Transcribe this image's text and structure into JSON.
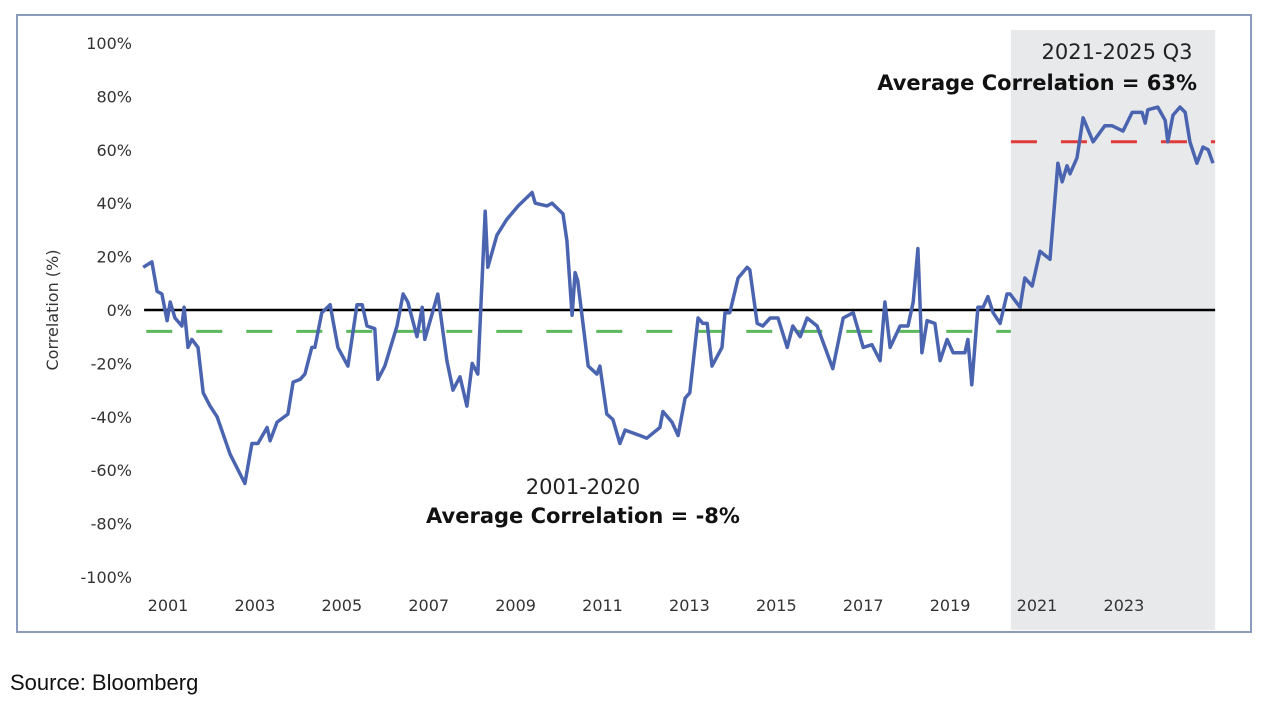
{
  "chart_data": {
    "type": "line",
    "ylabel": "Correlation (%)",
    "xlabel": "",
    "ylim": [
      -100,
      100
    ],
    "xlim": [
      2000.45,
      2025.1
    ],
    "y_ticks": [
      "100%",
      "80%",
      "60%",
      "40%",
      "20%",
      "0%",
      "-20%",
      "-40%",
      "-60%",
      "-80%",
      "-100%"
    ],
    "y_tick_values": [
      100,
      80,
      60,
      40,
      20,
      0,
      -20,
      -40,
      -60,
      -80,
      -100
    ],
    "x_ticks": [
      "2001",
      "2003",
      "2005",
      "2007",
      "2009",
      "2011",
      "2013",
      "2015",
      "2017",
      "2019",
      "2021",
      "2023"
    ],
    "x_tick_values": [
      2001,
      2003,
      2005,
      2007,
      2009,
      2011,
      2013,
      2015,
      2017,
      2019,
      2021,
      2023
    ],
    "grid": false,
    "zero_line": true,
    "shaded_region": [
      2020.4,
      2025.1
    ],
    "colors": {
      "series": "#4a64b0",
      "zero_line": "#000000",
      "avg_2001_2020": "#5cb85c",
      "avg_2021_2025": "#e03b3b",
      "shade": "#e8e9ea",
      "frame": "#8a9bbd"
    },
    "averages": [
      {
        "from": 2000.5,
        "to": 2020.4,
        "value": -8,
        "style": "dashed",
        "color": "#5cb85c"
      },
      {
        "from": 2020.4,
        "to": 2025.1,
        "value": 63,
        "style": "dashed",
        "color": "#e03b3b"
      }
    ],
    "annotations": [
      {
        "line1": "2021-2025 Q3",
        "line2": "Average Correlation = 63%"
      },
      {
        "line1": "2001-2020",
        "line2": "Average Correlation = -8%"
      }
    ],
    "series": [
      {
        "points": [
          [
            2000.43,
            16
          ],
          [
            2000.63,
            18
          ],
          [
            2000.75,
            7
          ],
          [
            2000.86,
            6
          ],
          [
            2000.98,
            -4
          ],
          [
            2001.05,
            3
          ],
          [
            2001.16,
            -3
          ],
          [
            2001.32,
            -6
          ],
          [
            2001.37,
            1
          ],
          [
            2001.46,
            -14
          ],
          [
            2001.55,
            -11
          ],
          [
            2001.69,
            -14
          ],
          [
            2001.81,
            -31
          ],
          [
            2001.97,
            -36
          ],
          [
            2002.13,
            -40
          ],
          [
            2002.43,
            -54
          ],
          [
            2002.77,
            -65
          ],
          [
            2002.93,
            -50
          ],
          [
            2003.07,
            -50
          ],
          [
            2003.28,
            -44
          ],
          [
            2003.35,
            -49
          ],
          [
            2003.51,
            -42
          ],
          [
            2003.76,
            -39
          ],
          [
            2003.88,
            -27
          ],
          [
            2004.04,
            -26
          ],
          [
            2004.15,
            -24
          ],
          [
            2004.31,
            -14
          ],
          [
            2004.38,
            -14
          ],
          [
            2004.54,
            -1
          ],
          [
            2004.73,
            2
          ],
          [
            2004.91,
            -14
          ],
          [
            2005.14,
            -21
          ],
          [
            2005.35,
            2
          ],
          [
            2005.47,
            2
          ],
          [
            2005.58,
            -6
          ],
          [
            2005.76,
            -7
          ],
          [
            2005.83,
            -26
          ],
          [
            2005.99,
            -21
          ],
          [
            2006.27,
            -6
          ],
          [
            2006.41,
            6
          ],
          [
            2006.52,
            3
          ],
          [
            2006.73,
            -10
          ],
          [
            2006.85,
            1
          ],
          [
            2006.91,
            -11
          ],
          [
            2007.21,
            6
          ],
          [
            2007.42,
            -19
          ],
          [
            2007.56,
            -30
          ],
          [
            2007.72,
            -25
          ],
          [
            2007.88,
            -36
          ],
          [
            2008.0,
            -20
          ],
          [
            2008.13,
            -24
          ],
          [
            2008.3,
            37
          ],
          [
            2008.36,
            16
          ],
          [
            2008.57,
            28
          ],
          [
            2008.8,
            34
          ],
          [
            2009.06,
            39
          ],
          [
            2009.38,
            44
          ],
          [
            2009.45,
            40
          ],
          [
            2009.72,
            39
          ],
          [
            2009.84,
            40
          ],
          [
            2010.09,
            36
          ],
          [
            2010.18,
            26
          ],
          [
            2010.3,
            -2
          ],
          [
            2010.37,
            14
          ],
          [
            2010.43,
            11
          ],
          [
            2010.67,
            -21
          ],
          [
            2010.87,
            -24
          ],
          [
            2010.94,
            -21
          ],
          [
            2011.1,
            -39
          ],
          [
            2011.24,
            -41
          ],
          [
            2011.4,
            -50
          ],
          [
            2011.52,
            -45
          ],
          [
            2011.86,
            -47
          ],
          [
            2012.02,
            -48
          ],
          [
            2012.32,
            -44
          ],
          [
            2012.39,
            -38
          ],
          [
            2012.6,
            -42
          ],
          [
            2012.74,
            -47
          ],
          [
            2012.9,
            -33
          ],
          [
            2013.01,
            -31
          ],
          [
            2013.2,
            -3
          ],
          [
            2013.31,
            -5
          ],
          [
            2013.41,
            -5
          ],
          [
            2013.52,
            -21
          ],
          [
            2013.75,
            -14
          ],
          [
            2013.82,
            -1
          ],
          [
            2013.93,
            -1
          ],
          [
            2014.12,
            12
          ],
          [
            2014.33,
            16
          ],
          [
            2014.39,
            15
          ],
          [
            2014.56,
            -5
          ],
          [
            2014.69,
            -6
          ],
          [
            2014.86,
            -3
          ],
          [
            2015.04,
            -3
          ],
          [
            2015.25,
            -14
          ],
          [
            2015.38,
            -6
          ],
          [
            2015.55,
            -10
          ],
          [
            2015.71,
            -3
          ],
          [
            2015.94,
            -6
          ],
          [
            2016.12,
            -14
          ],
          [
            2016.3,
            -22
          ],
          [
            2016.54,
            -3
          ],
          [
            2016.77,
            -1
          ],
          [
            2017.0,
            -14
          ],
          [
            2017.2,
            -13
          ],
          [
            2017.39,
            -19
          ],
          [
            2017.5,
            3
          ],
          [
            2017.62,
            -14
          ],
          [
            2017.85,
            -6
          ],
          [
            2018.03,
            -6
          ],
          [
            2018.15,
            3
          ],
          [
            2018.26,
            23
          ],
          [
            2018.35,
            -16
          ],
          [
            2018.47,
            -4
          ],
          [
            2018.65,
            -5
          ],
          [
            2018.77,
            -19
          ],
          [
            2018.93,
            -11
          ],
          [
            2019.07,
            -16
          ],
          [
            2019.34,
            -16
          ],
          [
            2019.41,
            -11
          ],
          [
            2019.5,
            -28
          ],
          [
            2019.64,
            1
          ],
          [
            2019.76,
            1
          ],
          [
            2019.87,
            5
          ],
          [
            2019.99,
            -1
          ],
          [
            2020.15,
            -5
          ],
          [
            2020.31,
            6
          ],
          [
            2020.38,
            6
          ],
          [
            2020.61,
            1
          ],
          [
            2020.72,
            12
          ],
          [
            2020.89,
            9
          ],
          [
            2021.07,
            22
          ],
          [
            2021.3,
            19
          ],
          [
            2021.48,
            55
          ],
          [
            2021.58,
            48
          ],
          [
            2021.69,
            54
          ],
          [
            2021.76,
            51
          ],
          [
            2021.92,
            57
          ],
          [
            2022.06,
            72
          ],
          [
            2022.29,
            63
          ],
          [
            2022.56,
            69
          ],
          [
            2022.73,
            69
          ],
          [
            2022.98,
            67
          ],
          [
            2023.19,
            74
          ],
          [
            2023.42,
            74
          ],
          [
            2023.49,
            70
          ],
          [
            2023.55,
            75
          ],
          [
            2023.78,
            76
          ],
          [
            2023.95,
            71
          ],
          [
            2024.01,
            63
          ],
          [
            2024.13,
            73
          ],
          [
            2024.29,
            76
          ],
          [
            2024.41,
            74
          ],
          [
            2024.52,
            63
          ],
          [
            2024.68,
            55
          ],
          [
            2024.82,
            61
          ],
          [
            2024.94,
            60
          ],
          [
            2025.05,
            55
          ]
        ]
      }
    ]
  },
  "source": "Source: Bloomberg"
}
